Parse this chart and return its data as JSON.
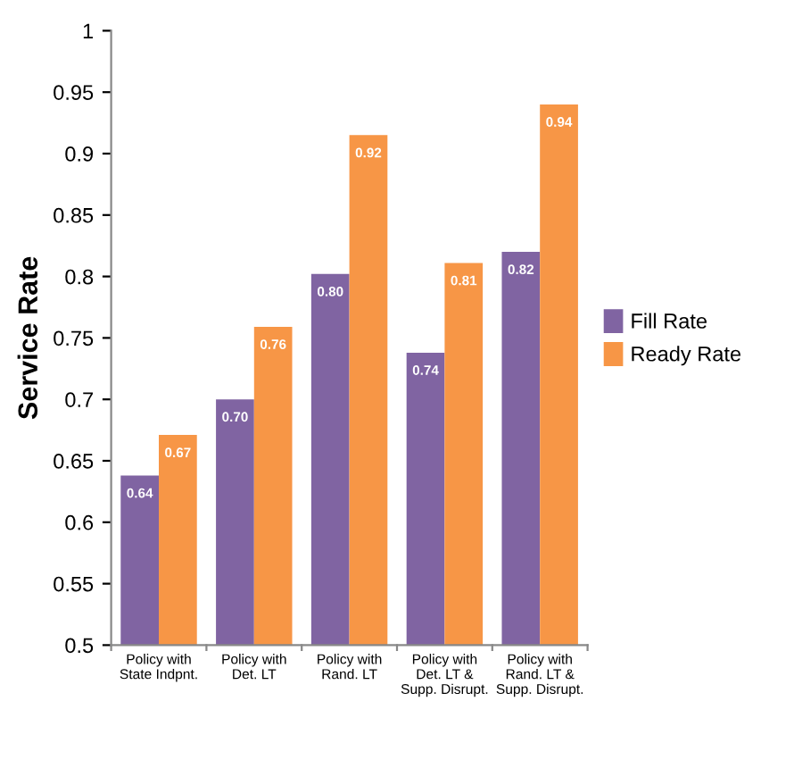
{
  "chart_data": {
    "type": "bar",
    "ylabel": "Service Rate",
    "categories": [
      "Policy with\nState Indpnt.",
      "Policy with\nDet. LT",
      "Policy with\nRand. LT",
      "Policy with\nDet. LT &\nSupp. Disrupt.",
      "Policy with\nRand. LT &\nSupp. Disrupt."
    ],
    "series": [
      {
        "name": "Fill Rate",
        "color": "#8064a2",
        "values": [
          0.638,
          0.7,
          0.802,
          0.738,
          0.82
        ],
        "value_labels": [
          "0.64",
          "0.70",
          "0.80",
          "0.74",
          "0.82"
        ]
      },
      {
        "name": "Ready Rate",
        "color": "#f79646",
        "values": [
          0.671,
          0.759,
          0.915,
          0.811,
          0.94
        ],
        "value_labels": [
          "0.67",
          "0.76",
          "0.92",
          "0.81",
          "0.94"
        ]
      }
    ],
    "ylim": [
      0.5,
      1
    ],
    "yticks": [
      0.5,
      0.55,
      0.6,
      0.65,
      0.7,
      0.75,
      0.8,
      0.85,
      0.9,
      0.95,
      1
    ],
    "grid": false,
    "legend": "right"
  }
}
